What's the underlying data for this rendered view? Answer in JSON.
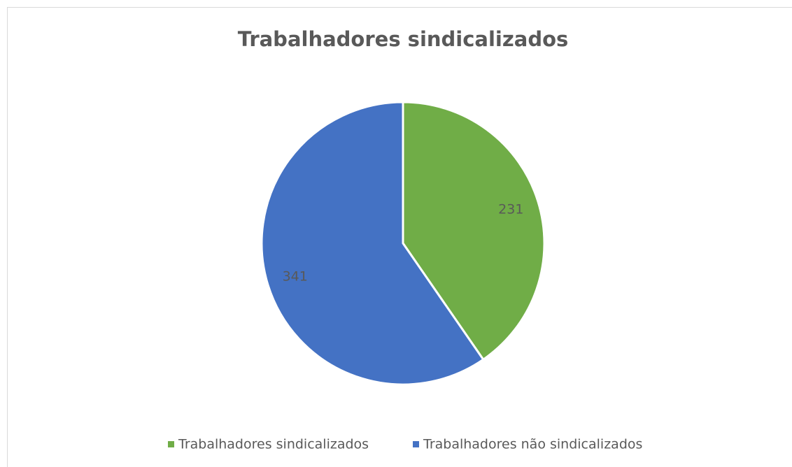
{
  "chart_data": {
    "type": "pie",
    "title": "Trabalhadores sindicalizados",
    "categories": [
      "Trabalhadores sindicalizados",
      "Trabalhadores não sindicalizados"
    ],
    "values": [
      231,
      341
    ],
    "colors": [
      "#70ad47",
      "#4472c4"
    ],
    "legend": "bottom"
  }
}
